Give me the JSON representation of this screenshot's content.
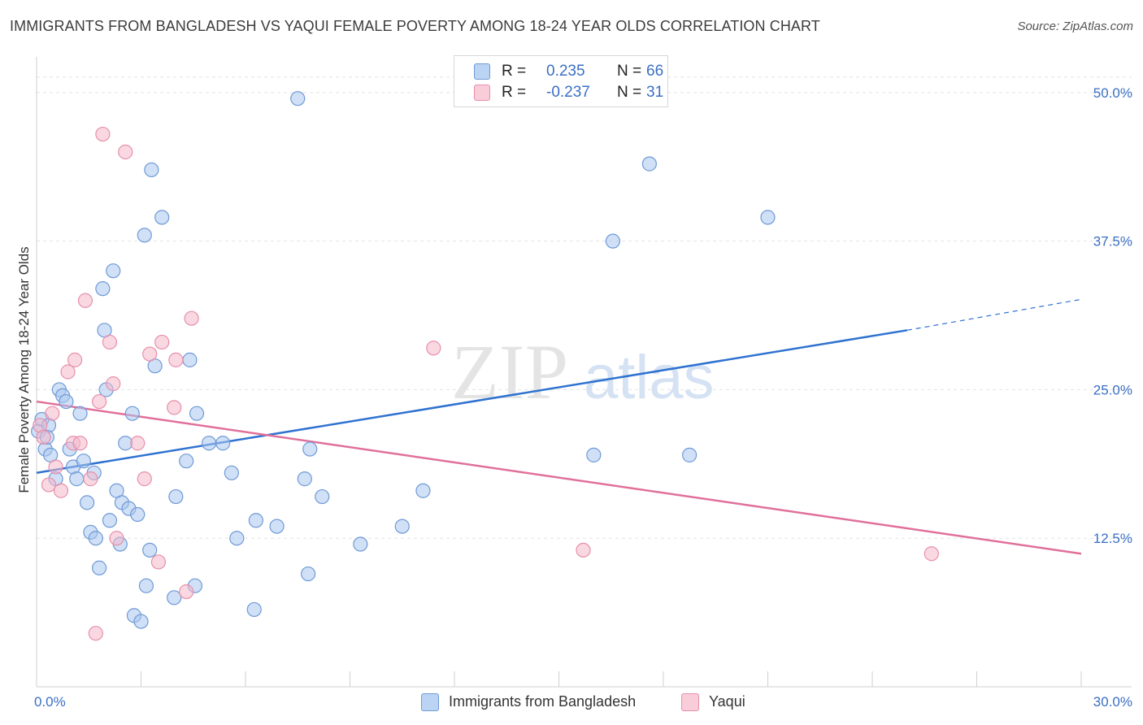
{
  "title": "IMMIGRANTS FROM BANGLADESH VS YAQUI FEMALE POVERTY AMONG 18-24 YEAR OLDS CORRELATION CHART",
  "source": "Source: ZipAtlas.com",
  "watermark": {
    "zip": "ZIP",
    "atlas": "atlas"
  },
  "legend_top": [
    {
      "r_label": "R =",
      "r_value": "0.235",
      "n_label": "N =",
      "n_value": "66",
      "color": "#a9c6ee"
    },
    {
      "r_label": "R =",
      "r_value": "-0.237",
      "n_label": "N =",
      "n_value": "31",
      "color": "#f4b8cb"
    }
  ],
  "chart_data": {
    "type": "scatter",
    "title": "IMMIGRANTS FROM BANGLADESH VS YAQUI FEMALE POVERTY AMONG 18-24 YEAR OLDS CORRELATION CHART",
    "xlabel": "",
    "ylabel": "Female Poverty Among 18-24 Year Olds",
    "xlim": [
      0,
      30
    ],
    "ylim": [
      0,
      53
    ],
    "x_tick_labels": [
      "0.0%",
      "30.0%"
    ],
    "y_ticks": [
      12.5,
      25.0,
      37.5,
      50.0
    ],
    "y_tick_labels": [
      "12.5%",
      "25.0%",
      "37.5%",
      "50.0%"
    ],
    "grid": true,
    "legend_position": "bottom",
    "series": [
      {
        "name": "Immigrants from Bangladesh",
        "color": "#a9c6ee",
        "stroke": "#6f9ad6",
        "line_color": "#2f72d0",
        "trend": {
          "x": [
            0,
            25
          ],
          "y": [
            18.0,
            30.0
          ],
          "dashed_to": [
            30,
            32.6
          ]
        },
        "points": [
          [
            0.05,
            21.5
          ],
          [
            0.15,
            22.5
          ],
          [
            0.25,
            20.0
          ],
          [
            0.35,
            22.0
          ],
          [
            0.4,
            19.5
          ],
          [
            0.55,
            17.5
          ],
          [
            0.65,
            25.0
          ],
          [
            0.75,
            24.5
          ],
          [
            0.85,
            24.0
          ],
          [
            0.95,
            20.0
          ],
          [
            1.05,
            18.5
          ],
          [
            1.15,
            17.5
          ],
          [
            1.25,
            23.0
          ],
          [
            1.35,
            19.0
          ],
          [
            1.45,
            15.5
          ],
          [
            1.55,
            13.0
          ],
          [
            1.65,
            18.0
          ],
          [
            1.7,
            12.5
          ],
          [
            1.8,
            10.0
          ],
          [
            1.9,
            33.5
          ],
          [
            1.95,
            30.0
          ],
          [
            2.0,
            25.0
          ],
          [
            2.1,
            14.0
          ],
          [
            2.2,
            35.0
          ],
          [
            2.3,
            16.5
          ],
          [
            2.4,
            12.0
          ],
          [
            2.45,
            15.5
          ],
          [
            2.55,
            20.5
          ],
          [
            2.65,
            15.0
          ],
          [
            2.75,
            23.0
          ],
          [
            2.8,
            6.0
          ],
          [
            2.9,
            14.5
          ],
          [
            3.0,
            5.5
          ],
          [
            3.1,
            38.0
          ],
          [
            3.15,
            8.5
          ],
          [
            3.25,
            11.5
          ],
          [
            3.3,
            43.5
          ],
          [
            3.4,
            27.0
          ],
          [
            3.6,
            39.5
          ],
          [
            3.95,
            7.5
          ],
          [
            4.0,
            16.0
          ],
          [
            4.3,
            19.0
          ],
          [
            4.4,
            27.5
          ],
          [
            4.55,
            8.5
          ],
          [
            4.6,
            23.0
          ],
          [
            4.95,
            20.5
          ],
          [
            5.35,
            20.5
          ],
          [
            5.6,
            18.0
          ],
          [
            5.75,
            12.5
          ],
          [
            6.25,
            6.5
          ],
          [
            6.3,
            14.0
          ],
          [
            6.9,
            13.5
          ],
          [
            7.5,
            49.5
          ],
          [
            7.7,
            17.5
          ],
          [
            7.8,
            9.5
          ],
          [
            7.85,
            20.0
          ],
          [
            8.2,
            16.0
          ],
          [
            9.3,
            12.0
          ],
          [
            10.5,
            13.5
          ],
          [
            11.1,
            16.5
          ],
          [
            16.0,
            19.5
          ],
          [
            16.55,
            37.5
          ],
          [
            17.6,
            44.0
          ],
          [
            18.75,
            19.5
          ],
          [
            21.0,
            39.5
          ],
          [
            0.3,
            21.0
          ]
        ]
      },
      {
        "name": "Yaqui",
        "color": "#f4b8cb",
        "stroke": "#e78fab",
        "line_color": "#e0709a",
        "trend": {
          "x": [
            0,
            30
          ],
          "y": [
            24.0,
            11.2
          ]
        },
        "points": [
          [
            0.1,
            22.0
          ],
          [
            0.2,
            21.0
          ],
          [
            0.35,
            17.0
          ],
          [
            0.45,
            23.0
          ],
          [
            0.55,
            18.5
          ],
          [
            0.7,
            16.5
          ],
          [
            0.9,
            26.5
          ],
          [
            1.05,
            20.5
          ],
          [
            1.1,
            27.5
          ],
          [
            1.25,
            20.5
          ],
          [
            1.4,
            32.5
          ],
          [
            1.55,
            17.5
          ],
          [
            1.7,
            4.5
          ],
          [
            1.8,
            24.0
          ],
          [
            1.9,
            46.5
          ],
          [
            2.1,
            29.0
          ],
          [
            2.2,
            25.5
          ],
          [
            2.3,
            12.5
          ],
          [
            2.55,
            45.0
          ],
          [
            2.9,
            20.5
          ],
          [
            3.1,
            17.5
          ],
          [
            3.25,
            28.0
          ],
          [
            3.5,
            10.5
          ],
          [
            3.6,
            29.0
          ],
          [
            3.95,
            23.5
          ],
          [
            4.0,
            27.5
          ],
          [
            4.3,
            8.0
          ],
          [
            4.45,
            31.0
          ],
          [
            11.4,
            28.5
          ],
          [
            15.7,
            11.5
          ],
          [
            25.7,
            11.2
          ]
        ]
      }
    ]
  }
}
